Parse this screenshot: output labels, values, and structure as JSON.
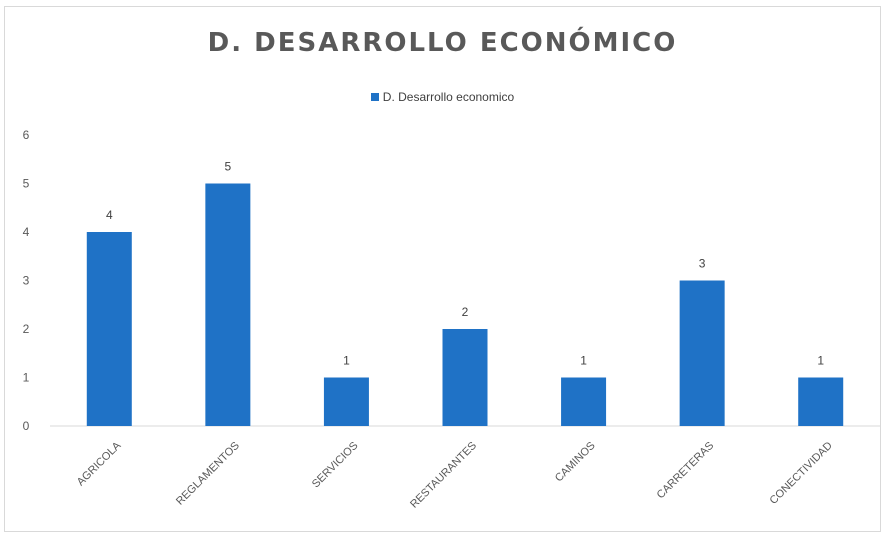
{
  "chart_data": {
    "type": "bar",
    "title": "D. DESARROLLO ECONÓMICO",
    "categories": [
      "AGRICOLA",
      "REGLAMENTOS",
      "SERVICIOS",
      "RESTAURANTES",
      "CAMINOS",
      "CARRETERAS",
      "CONECTIVIDAD"
    ],
    "series": [
      {
        "name": "D. Desarrollo economico",
        "values": [
          4,
          5,
          1,
          2,
          1,
          3,
          1
        ]
      }
    ],
    "ylim": [
      0,
      6
    ],
    "yticks": [
      "0",
      "1",
      "2",
      "3",
      "4",
      "5",
      "6"
    ],
    "grid": false,
    "legend_position": "top",
    "data_labels": true,
    "bar_color": "#1f72c6"
  }
}
